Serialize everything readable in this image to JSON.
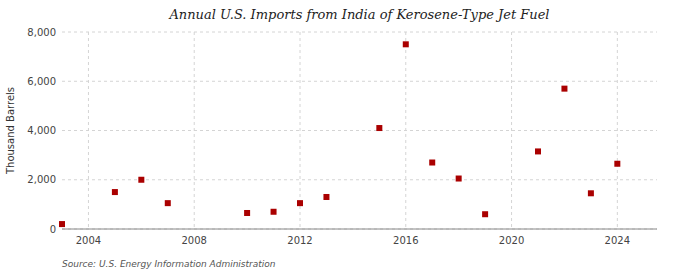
{
  "chart_data": {
    "type": "scatter",
    "title": "Annual U.S. Imports from India of Kerosene-Type Jet Fuel",
    "ylabel": "Thousand Barrels",
    "annotation": "Source: U.S. Energy Information Administration",
    "x": [
      2003,
      2005,
      2006,
      2007,
      2010,
      2011,
      2012,
      2013,
      2015,
      2016,
      2017,
      2018,
      2019,
      2021,
      2022,
      2023,
      2024
    ],
    "values": [
      200,
      1500,
      2000,
      1050,
      650,
      700,
      1050,
      1300,
      4100,
      7500,
      2700,
      2050,
      600,
      3150,
      5700,
      1450,
      2650
    ],
    "color": "#aa0000",
    "marker": "square",
    "xlim": [
      2003.0,
      2025.5
    ],
    "xticks": [
      2004,
      2008,
      2012,
      2016,
      2020,
      2024
    ],
    "ylim": [
      0,
      8000
    ],
    "yticks": [
      0,
      {
        "value": 2000,
        "label": "2,000"
      },
      {
        "value": 4000,
        "label": "4,000"
      },
      {
        "value": 6000,
        "label": "6,000"
      },
      {
        "value": 8000,
        "label": "8,000"
      }
    ],
    "grid": true
  }
}
